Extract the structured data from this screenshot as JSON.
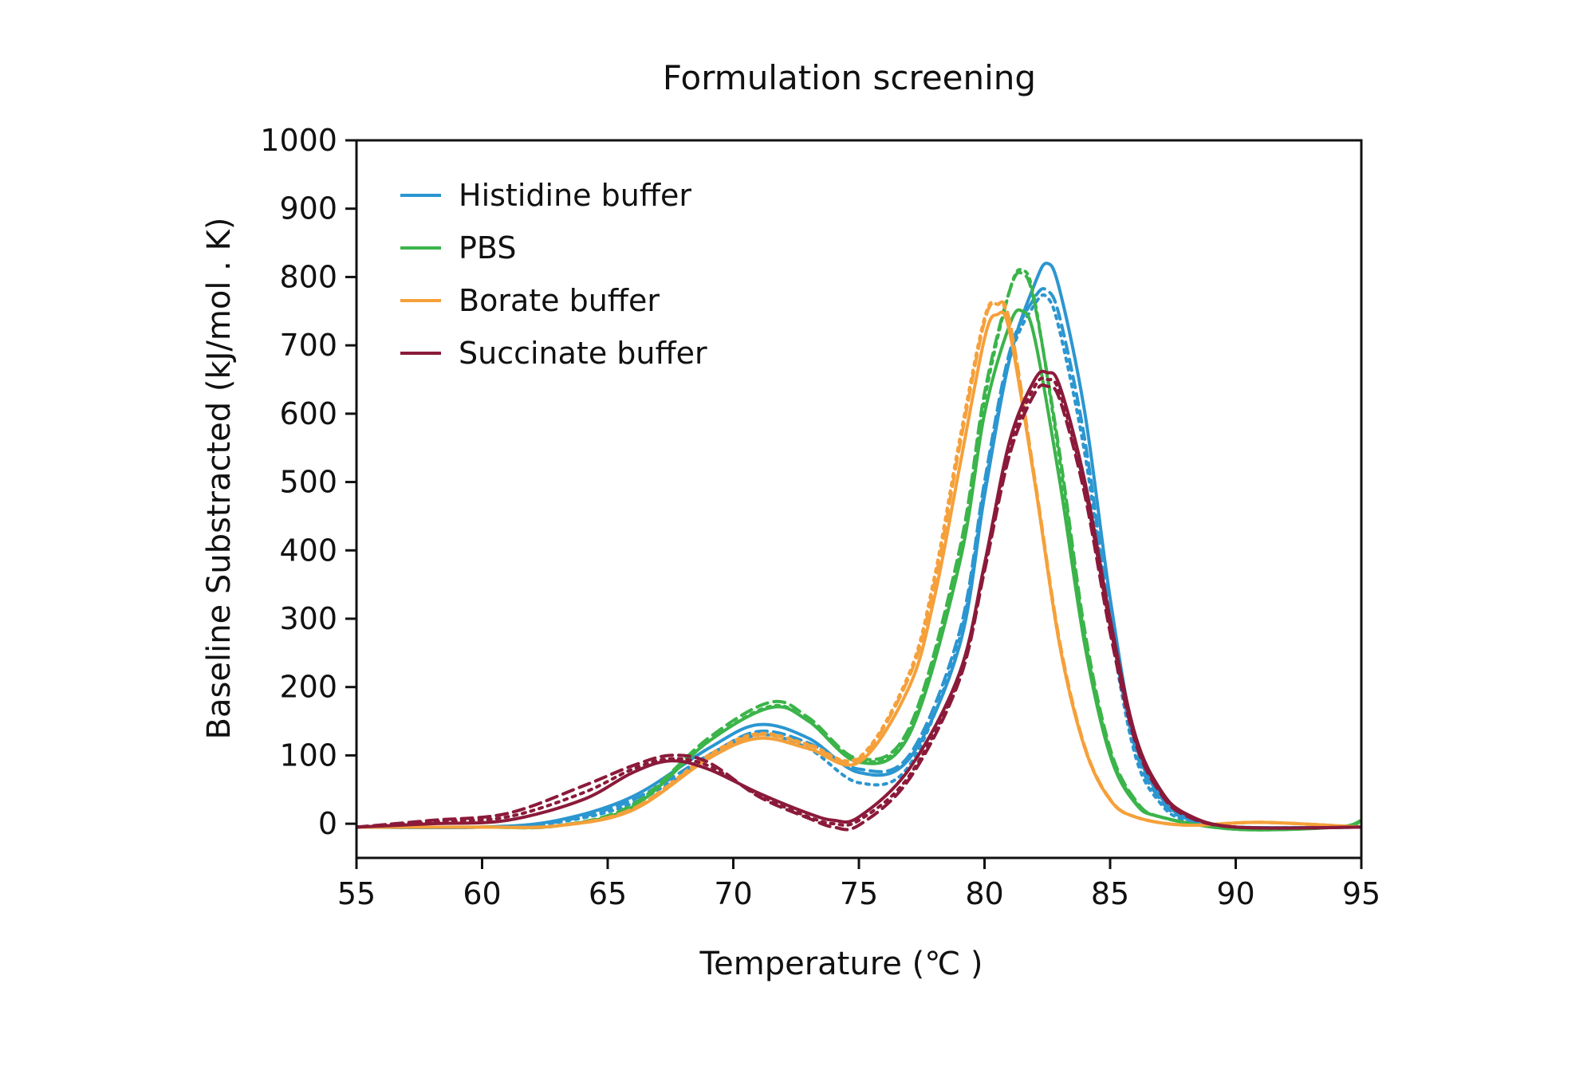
{
  "chart_data": {
    "type": "line",
    "title": "Formulation screening",
    "xlabel": "Temperature (℃ )",
    "ylabel": "Baseline Substracted (kJ/mol . K)",
    "xlim": [
      55,
      95
    ],
    "ylim": [
      -50,
      1000
    ],
    "x_ticks": [
      "55",
      "60",
      "65",
      "70",
      "75",
      "80",
      "85",
      "90",
      "95"
    ],
    "y_ticks": [
      "0",
      "100",
      "200",
      "300",
      "400",
      "500",
      "600",
      "700",
      "800",
      "900",
      "1000"
    ],
    "grid": false,
    "legend_position": "top-left",
    "series": [
      {
        "name": "Histidine buffer",
        "color": "#2b96d0",
        "replicates": [
          {
            "style": "solid",
            "x": [
              55,
              60,
              63,
              66,
              69,
              71,
              73,
              75,
              77,
              79,
              80,
              81,
              82,
              82.5,
              83,
              84,
              85,
              86,
              87,
              88,
              90,
              95
            ],
            "y": [
              -5,
              -5,
              5,
              40,
              110,
              145,
              125,
              75,
              95,
              260,
              480,
              680,
              790,
              820,
              780,
              600,
              330,
              120,
              40,
              10,
              -5,
              -5
            ]
          },
          {
            "style": "dashed",
            "x": [
              55,
              60,
              63,
              66,
              69,
              71,
              73,
              75,
              77,
              79,
              80,
              81,
              82,
              82.5,
              83,
              84,
              85,
              86,
              87,
              88,
              90,
              95
            ],
            "y": [
              -5,
              -5,
              3,
              35,
              100,
              135,
              118,
              80,
              100,
              280,
              500,
              690,
              770,
              780,
              740,
              560,
              300,
              110,
              35,
              8,
              -5,
              -5
            ]
          },
          {
            "style": "dotted",
            "x": [
              55,
              60,
              63,
              66,
              69,
              71,
              73,
              75,
              77,
              79,
              80,
              81,
              82,
              82.5,
              83,
              84,
              85,
              86,
              87,
              88,
              90,
              95
            ],
            "y": [
              -5,
              -5,
              2,
              30,
              95,
              130,
              110,
              60,
              85,
              270,
              490,
              680,
              760,
              770,
              720,
              540,
              290,
              100,
              30,
              5,
              -5,
              -5
            ]
          }
        ]
      },
      {
        "name": "PBS",
        "color": "#3bb44a",
        "replicates": [
          {
            "style": "solid",
            "x": [
              55,
              60,
              63,
              66,
              69,
              71.5,
              73,
              75,
              77,
              79,
              80,
              81,
              81.5,
              82,
              83,
              84,
              85,
              86,
              87,
              90,
              94,
              95
            ],
            "y": [
              -5,
              -5,
              -3,
              25,
              120,
              170,
              150,
              90,
              130,
              380,
              600,
              730,
              750,
              710,
              500,
              260,
              100,
              30,
              10,
              -8,
              -5,
              5
            ]
          },
          {
            "style": "dashed",
            "x": [
              55,
              60,
              63,
              66,
              69,
              71.5,
              73,
              75,
              77,
              79,
              80,
              81,
              81.5,
              82,
              83,
              84,
              85,
              86,
              87,
              90,
              94,
              95
            ],
            "y": [
              -5,
              -5,
              -3,
              28,
              125,
              178,
              155,
              95,
              140,
              400,
              630,
              780,
              805,
              760,
              540,
              280,
              110,
              35,
              10,
              -8,
              -5,
              3
            ]
          },
          {
            "style": "dotted",
            "x": [
              55,
              60,
              63,
              66,
              69,
              71.5,
              73,
              75,
              77,
              79,
              80,
              81,
              81.5,
              82,
              83,
              84,
              85,
              86,
              87,
              90,
              94,
              95
            ],
            "y": [
              -5,
              -5,
              -3,
              26,
              120,
              172,
              150,
              92,
              135,
              390,
              620,
              780,
              810,
              765,
              530,
              270,
              105,
              32,
              10,
              -8,
              -5,
              3
            ]
          }
        ]
      },
      {
        "name": "Borate buffer",
        "color": "#f5a03a",
        "replicates": [
          {
            "style": "solid",
            "x": [
              55,
              60,
              63,
              66,
              69,
              71,
              73,
              75,
              77,
              78,
              79,
              80,
              80.5,
              81,
              82,
              83,
              84,
              85,
              86,
              88,
              91,
              95
            ],
            "y": [
              -5,
              -5,
              -3,
              20,
              95,
              125,
              110,
              90,
              200,
              330,
              520,
              710,
              745,
              720,
              500,
              260,
              110,
              35,
              10,
              -2,
              2,
              -5
            ]
          },
          {
            "style": "dashed",
            "x": [
              55,
              60,
              63,
              66,
              69,
              71,
              73,
              75,
              77,
              78,
              79,
              80,
              80.5,
              81,
              82,
              83,
              84,
              85,
              86,
              88,
              91,
              95
            ],
            "y": [
              -5,
              -5,
              -3,
              22,
              98,
              130,
              115,
              95,
              215,
              350,
              550,
              735,
              760,
              735,
              505,
              265,
              112,
              36,
              10,
              -2,
              2,
              -5
            ]
          },
          {
            "style": "dotted",
            "x": [
              55,
              60,
              63,
              66,
              69,
              71,
              73,
              75,
              77,
              78,
              79,
              80,
              80.5,
              81,
              82,
              83,
              84,
              85,
              86,
              88,
              91,
              95
            ],
            "y": [
              -5,
              -5,
              -3,
              22,
              100,
              132,
              116,
              97,
              220,
              360,
              560,
              740,
              760,
              730,
              500,
              260,
              110,
              35,
              10,
              -2,
              2,
              -5
            ]
          }
        ]
      },
      {
        "name": "Succinate buffer",
        "color": "#8b1a3a",
        "replicates": [
          {
            "style": "solid",
            "x": [
              55,
              58,
              61,
              64,
              66,
              67.5,
              69,
              71,
              73,
              74,
              75,
              77,
              79,
              80,
              81,
              82,
              82.5,
              83,
              84,
              85,
              86,
              87,
              88,
              90,
              95
            ],
            "y": [
              -5,
              0,
              5,
              35,
              75,
              92,
              80,
              45,
              15,
              5,
              10,
              80,
              220,
              380,
              560,
              650,
              660,
              640,
              500,
              300,
              130,
              50,
              15,
              -5,
              -5
            ]
          },
          {
            "style": "dashed",
            "x": [
              55,
              58,
              61,
              64,
              66,
              67.5,
              69,
              71,
              73,
              74,
              75,
              77,
              79,
              80,
              81,
              82,
              82.5,
              83,
              84,
              85,
              86,
              87,
              88,
              90,
              95
            ],
            "y": [
              -5,
              5,
              15,
              55,
              85,
              100,
              90,
              40,
              8,
              -5,
              -2,
              65,
              210,
              370,
              540,
              630,
              640,
              620,
              480,
              280,
              120,
              45,
              12,
              -5,
              -5
            ]
          },
          {
            "style": "dotted",
            "x": [
              55,
              58,
              61,
              64,
              66,
              67.5,
              69,
              71,
              73,
              74,
              75,
              77,
              79,
              80,
              81,
              82,
              82.5,
              83,
              84,
              85,
              86,
              87,
              88,
              90,
              95
            ],
            "y": [
              -5,
              3,
              10,
              45,
              80,
              95,
              85,
              42,
              10,
              0,
              5,
              70,
              215,
              375,
              550,
              640,
              650,
              630,
              490,
              290,
              125,
              48,
              14,
              -5,
              -5
            ]
          }
        ]
      }
    ]
  }
}
